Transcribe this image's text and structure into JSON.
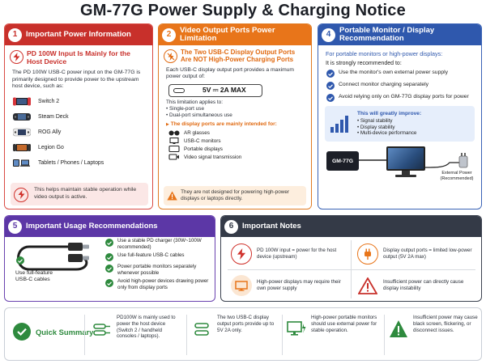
{
  "title": "GM-77G Power Supply & Charging Notice",
  "colors": {
    "red": "#c8302b",
    "orange": "#e8751a",
    "blue": "#2f58ad",
    "purple": "#5c37a6",
    "dark": "#343a47",
    "green": "#2e8a3e"
  },
  "panel1": {
    "num": "1",
    "heading": "Important Power Information",
    "alert": "PD 100W Input Is Mainly for the Host Device",
    "body": "The PD 100W USB-C power input on the GM-77G is primarily designed to provide power to the upstream host device, such as:",
    "devices": [
      {
        "icon": "switch-console-icon",
        "label": "Switch 2"
      },
      {
        "icon": "steam-deck-icon",
        "label": "Steam Deck"
      },
      {
        "icon": "rog-ally-icon",
        "label": "ROG Ally"
      },
      {
        "icon": "legion-go-icon",
        "label": "Legion Go"
      },
      {
        "icon": "tablet-laptop-icon",
        "label": "Tablets / Phones / Laptops"
      }
    ],
    "note": "This helps maintain stable operation while video output is active."
  },
  "panel2": {
    "num": "2",
    "heading": "Video Output Ports Power Limitation",
    "alert": "The Two USB-C Display Output Ports Are NOT High-Power Charging Ports",
    "body": "Each USB-C display output port provides a maximum power output of:",
    "power": "5V ⎓ 2A MAX",
    "applies": "This limitation applies to:",
    "applies_items": [
      "Single-port use",
      "Dual-port simultaneous use"
    ],
    "intended": "The display ports are mainly intended for:",
    "uses": [
      {
        "icon": "ar-glasses-icon",
        "label": "AR glasses"
      },
      {
        "icon": "usb-c-monitor-icon",
        "label": "USB-C monitors"
      },
      {
        "icon": "portable-display-icon",
        "label": "Portable displays"
      },
      {
        "icon": "video-signal-icon",
        "label": "Video signal transmission"
      }
    ],
    "warn": "They are not designed for powering high-power displays or laptops directly."
  },
  "panel3": {
    "num": "4",
    "heading": "Portable Monitor / Display Recommendation",
    "lead": "For portable monitors or high-power displays:",
    "strong": "It is strongly recommended to:",
    "items": [
      "Use the monitor's own external power supply",
      "Connect monitor charging separately",
      "Avoid relying only on GM-77G display ports for power"
    ],
    "box_title": "This will greatly improve:",
    "box_items": [
      "Signal stability",
      "Display stability",
      "Multi-device performance"
    ],
    "device_label": "GM-77G",
    "ext_label": "External Power (Recommended)"
  },
  "panel5": {
    "num": "5",
    "heading": "Important Usage Recommendations",
    "cable_caption": "Use full-feature USB-C cables",
    "items": [
      "Use a stable PD charger (30W~100W recommended)",
      "Use full-feature USB-C cables",
      "Power portable monitors separately whenever possible",
      "Avoid high-power devices drawing power only from display ports"
    ]
  },
  "panel6": {
    "num": "6",
    "heading": "Important Notes",
    "notes": [
      {
        "icon": "power-bolt-icon",
        "text": "PD 100W input = power for the host device (upstream)"
      },
      {
        "icon": "plug-icon",
        "text": "Display output ports = limited low-power output (5V 2A max)"
      },
      {
        "icon": "monitor-icon",
        "text": "High-power displays may require their own power supply"
      },
      {
        "icon": "warning-icon",
        "text": "Insufficient power can directly cause display instability"
      }
    ]
  },
  "summary": {
    "title": "Quick Summary",
    "items": [
      {
        "icon": "usb-cable-icon",
        "text": "PD100W is mainly used to power the host device (Switch 2 / handheld consoles / laptops)."
      },
      {
        "icon": "usb-c-port-icon",
        "text": "The two USB-C display output ports provide up to 5V 2A only."
      },
      {
        "icon": "monitor-power-icon",
        "text": "High-power portable monitors should use external power for stable operation."
      },
      {
        "icon": "warning-icon",
        "text": "Insufficient power may cause black screen, flickering, or disconnect issues."
      }
    ]
  }
}
